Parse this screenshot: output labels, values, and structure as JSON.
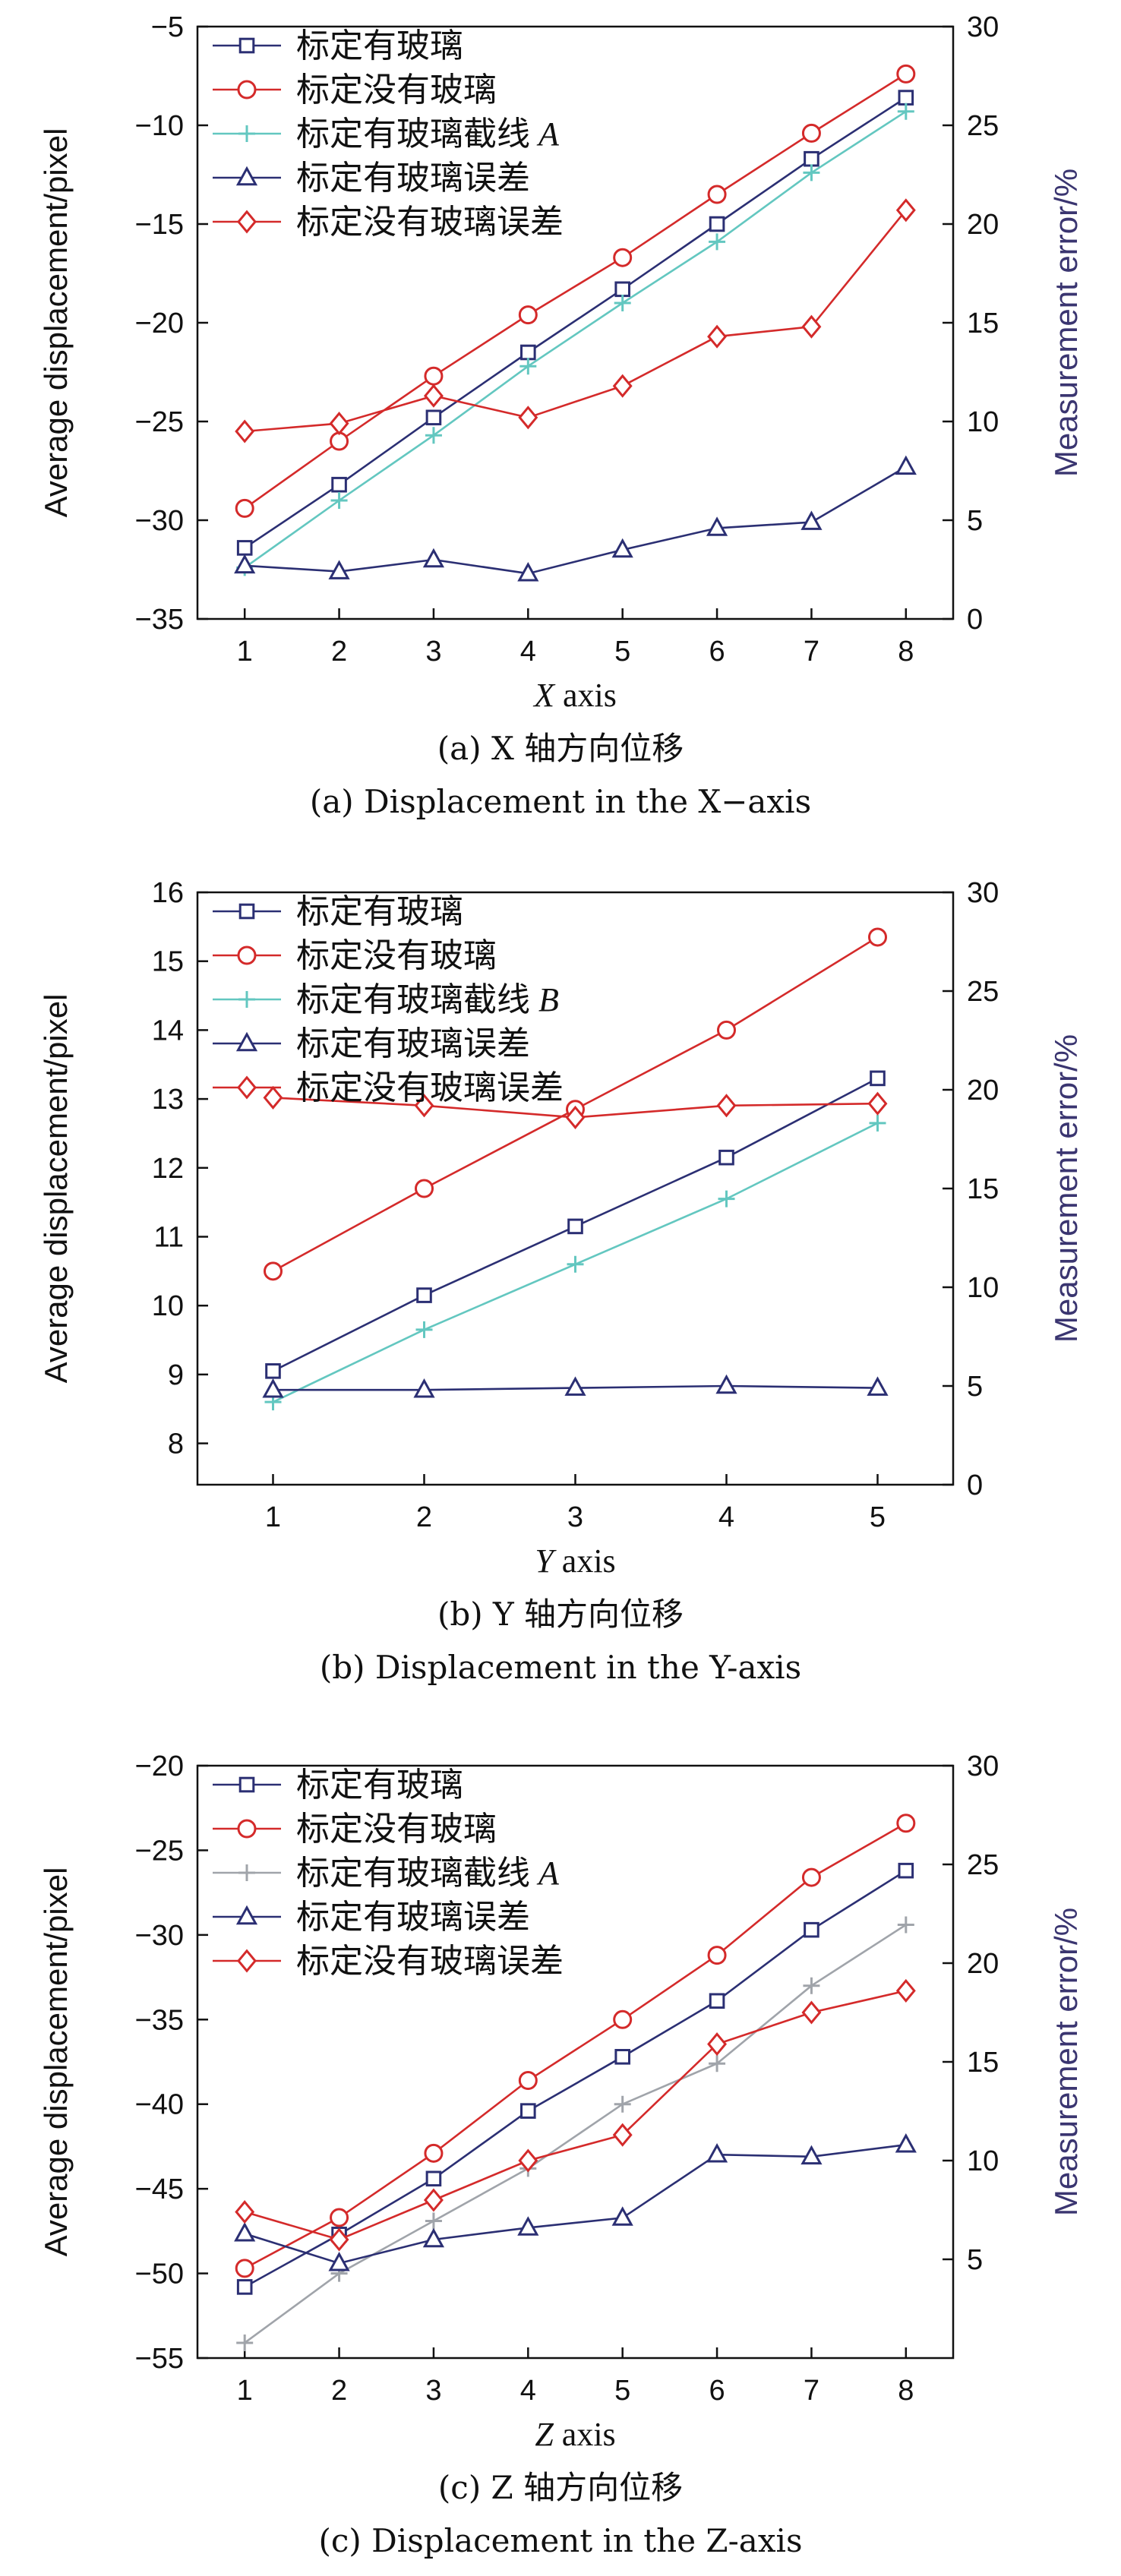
{
  "panels": [
    {
      "caption_cn": "(a) X 轴方向位移",
      "caption_en": "(a) Displacement in the X−axis",
      "chart_data": {
        "type": "line",
        "x": [
          1,
          2,
          3,
          4,
          5,
          6,
          7,
          8
        ],
        "xlabel": "X axis",
        "ylabel": "Average displacement/pixel",
        "y2label": "Measurement error/%",
        "ylim": [
          -35,
          -5
        ],
        "yticks": [
          -35,
          -30,
          -25,
          -20,
          -15,
          -10,
          -5
        ],
        "y2lim": [
          0,
          30
        ],
        "y2ticks": [
          0,
          5,
          10,
          15,
          20,
          25,
          30
        ],
        "grid": false,
        "legend_position": "top-left",
        "series": [
          {
            "name": "标定有玻璃",
            "axis": "left",
            "marker": "square",
            "color": "#2b2f73",
            "values": [
              -31.4,
              -28.2,
              -24.8,
              -21.5,
              -18.3,
              -15.0,
              -11.7,
              -8.6
            ]
          },
          {
            "name": "标定没有玻璃",
            "axis": "left",
            "marker": "circle",
            "color": "#d42a2a",
            "values": [
              -29.4,
              -26.0,
              -22.7,
              -19.6,
              -16.7,
              -13.5,
              -10.4,
              -7.4
            ]
          },
          {
            "name": "标定有玻璃截线 A",
            "axis": "left",
            "marker": "plus",
            "color": "#63c7c0",
            "values": [
              -32.4,
              -29.0,
              -25.7,
              -22.2,
              -19.0,
              -15.9,
              -12.4,
              -9.3
            ]
          },
          {
            "name": "标定有玻璃误差",
            "axis": "right",
            "marker": "triangle",
            "color": "#2b2f73",
            "values": [
              2.7,
              2.4,
              3.0,
              2.3,
              3.5,
              4.6,
              4.9,
              7.7
            ]
          },
          {
            "name": "标定没有玻璃误差",
            "axis": "right",
            "marker": "diamond",
            "color": "#d42a2a",
            "values": [
              9.5,
              9.9,
              11.3,
              10.2,
              11.8,
              14.3,
              14.8,
              20.7
            ]
          }
        ]
      }
    },
    {
      "caption_cn": "(b) Y 轴方向位移",
      "caption_en": "(b) Displacement in the Y-axis",
      "chart_data": {
        "type": "line",
        "x": [
          1,
          2,
          3,
          4,
          5
        ],
        "xlabel": "Y axis",
        "ylabel": "Average displacement/pixel",
        "y2label": "Measurement error/%",
        "ylim": [
          7.4,
          16
        ],
        "yticks": [
          8,
          9,
          10,
          11,
          12,
          13,
          14,
          15,
          16
        ],
        "y2lim": [
          0,
          30
        ],
        "y2ticks": [
          0,
          5,
          10,
          15,
          20,
          25,
          30
        ],
        "grid": false,
        "legend_position": "top-left",
        "series": [
          {
            "name": "标定有玻璃",
            "axis": "left",
            "marker": "square",
            "color": "#2b2f73",
            "values": [
              9.05,
              10.15,
              11.15,
              12.15,
              13.3
            ]
          },
          {
            "name": "标定没有玻璃",
            "axis": "left",
            "marker": "circle",
            "color": "#d42a2a",
            "values": [
              10.5,
              11.7,
              12.85,
              14.0,
              15.35
            ]
          },
          {
            "name": "标定有玻璃截线 B",
            "axis": "left",
            "marker": "plus",
            "color": "#63c7c0",
            "values": [
              8.6,
              9.65,
              10.6,
              11.55,
              12.65
            ]
          },
          {
            "name": "标定有玻璃误差",
            "axis": "right",
            "marker": "triangle",
            "color": "#2b2f73",
            "values": [
              4.8,
              4.8,
              4.9,
              5.0,
              4.9
            ]
          },
          {
            "name": "标定没有玻璃误差",
            "axis": "right",
            "marker": "diamond",
            "color": "#d42a2a",
            "values": [
              19.6,
              19.2,
              18.6,
              19.2,
              19.3
            ]
          }
        ]
      }
    },
    {
      "caption_cn": "(c) Z 轴方向位移",
      "caption_en": "(c) Displacement in the Z-axis",
      "chart_data": {
        "type": "line",
        "x": [
          1,
          2,
          3,
          4,
          5,
          6,
          7,
          8
        ],
        "xlabel": "Z axis",
        "ylabel": "Average displacement/pixel",
        "y2label": "Measurement error/%",
        "ylim": [
          -55,
          -20
        ],
        "yticks": [
          -55,
          -50,
          -45,
          -40,
          -35,
          -30,
          -25,
          -20
        ],
        "y2lim": [
          0,
          30
        ],
        "y2ticks": [
          5,
          10,
          15,
          20,
          25,
          30
        ],
        "grid": false,
        "legend_position": "top-left",
        "series": [
          {
            "name": "标定有玻璃",
            "axis": "left",
            "marker": "square",
            "color": "#2b2f73",
            "values": [
              -50.8,
              -47.7,
              -44.4,
              -40.4,
              -37.2,
              -33.9,
              -29.7,
              -26.2
            ]
          },
          {
            "name": "标定没有玻璃",
            "axis": "left",
            "marker": "circle",
            "color": "#d42a2a",
            "values": [
              -49.7,
              -46.7,
              -42.9,
              -38.6,
              -35.0,
              -31.2,
              -26.6,
              -23.4
            ]
          },
          {
            "name": "标定有玻璃截线 A",
            "axis": "left",
            "marker": "plus",
            "color": "#a0a4aa",
            "values": [
              -54.1,
              -50.0,
              -46.9,
              -43.8,
              -40.0,
              -37.6,
              -33.0,
              -29.4
            ]
          },
          {
            "name": "标定有玻璃误差",
            "axis": "right",
            "marker": "triangle",
            "color": "#2b2f73",
            "values": [
              6.3,
              4.8,
              6.0,
              6.6,
              7.1,
              10.3,
              10.2,
              10.8
            ]
          },
          {
            "name": "标定没有玻璃误差",
            "axis": "right",
            "marker": "diamond",
            "color": "#d42a2a",
            "values": [
              7.4,
              6.0,
              8.0,
              10.0,
              11.3,
              15.9,
              17.5,
              18.6
            ]
          }
        ]
      }
    }
  ]
}
